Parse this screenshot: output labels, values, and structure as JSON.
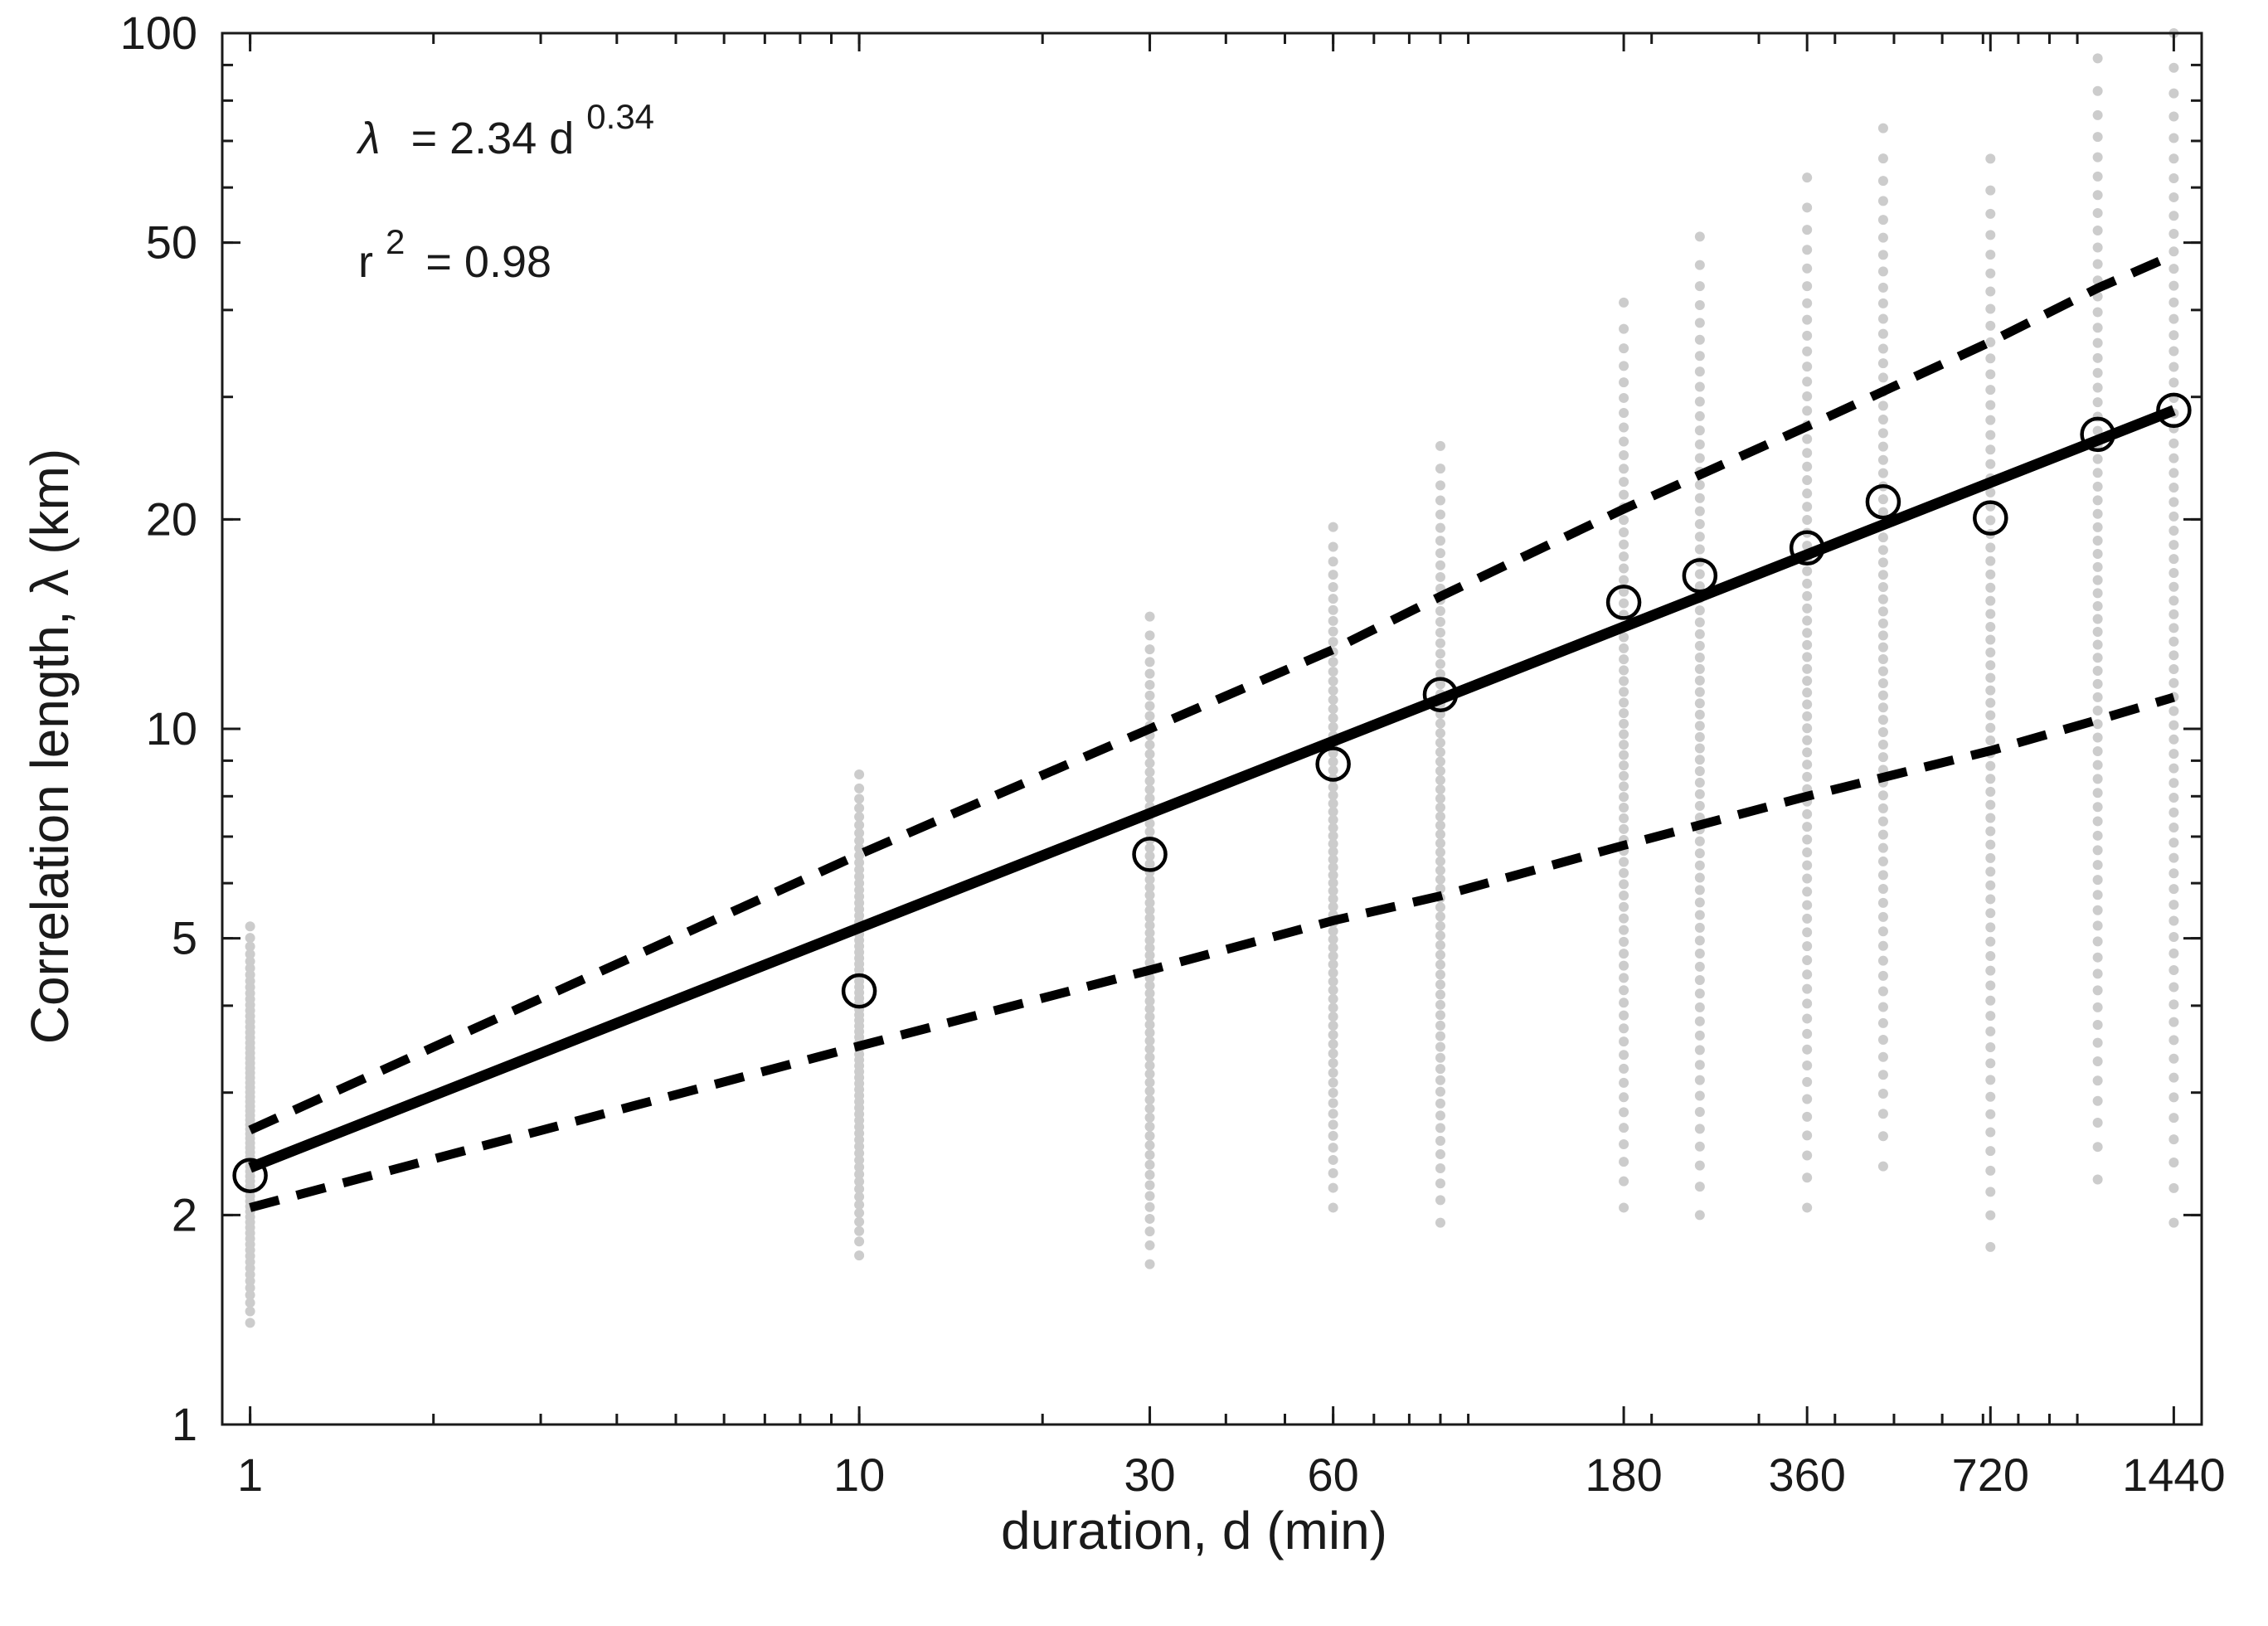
{
  "chart_data": {
    "type": "scatter",
    "xscale": "log",
    "yscale": "log",
    "xlim": [
      0.9,
      1600
    ],
    "ylim": [
      1,
      100
    ],
    "xlabel": "duration, d (min)",
    "ylabel": "Correlation length, λ (km)",
    "xticks": [
      1,
      10,
      30,
      60,
      180,
      360,
      720,
      1440
    ],
    "xtick_labels": [
      "1",
      "10",
      "30",
      "60",
      "180",
      "360",
      "720",
      "1440"
    ],
    "yticks": [
      1,
      2,
      5,
      10,
      20,
      50,
      100
    ],
    "ytick_labels": [
      "1",
      "2",
      "5",
      "10",
      "20",
      "50",
      "100"
    ],
    "grid": false,
    "annotations": {
      "equation_lhs": "λ",
      "equation_rhs": "= 2.34 d",
      "equation_exp": "0.34",
      "r2_lhs": "r",
      "r2_sup": "2",
      "r2_rhs": "= 0.98"
    },
    "colors": {
      "scatter": "#cccccc",
      "fit": "#000000",
      "means": "#000000"
    },
    "scatter_ranges": [
      {
        "x": 1,
        "y_min": 1.4,
        "y_max": 5.2
      },
      {
        "x": 10,
        "y_min": 1.75,
        "y_max": 8.6
      },
      {
        "x": 30,
        "y_min": 1.7,
        "y_max": 14.5
      },
      {
        "x": 60,
        "y_min": 2.05,
        "y_max": 19.5
      },
      {
        "x": 90,
        "y_min": 1.95,
        "y_max": 25.5
      },
      {
        "x": 180,
        "y_min": 2.05,
        "y_max": 41
      },
      {
        "x": 240,
        "y_min": 2.0,
        "y_max": 51
      },
      {
        "x": 360,
        "y_min": 2.05,
        "y_max": 62
      },
      {
        "x": 480,
        "y_min": 2.35,
        "y_max": 73
      },
      {
        "x": 720,
        "y_min": 1.8,
        "y_max": 66
      },
      {
        "x": 1080,
        "y_min": 2.25,
        "y_max": 92
      },
      {
        "x": 1440,
        "y_min": 1.95,
        "y_max": 100
      }
    ],
    "means": {
      "x": [
        1,
        10,
        30,
        60,
        90,
        180,
        240,
        360,
        480,
        720,
        1080,
        1440
      ],
      "y": [
        2.28,
        4.2,
        6.6,
        8.9,
        11.2,
        15.2,
        16.6,
        18.2,
        21.2,
        20.1,
        26.5,
        28.7
      ]
    },
    "fit": {
      "x": [
        1,
        1440
      ],
      "y": [
        2.34,
        28.7
      ]
    },
    "upper_bound": {
      "x": [
        1,
        10,
        30,
        60,
        90,
        180,
        360,
        720,
        1080,
        1440
      ],
      "y": [
        2.65,
        6.6,
        10.0,
        13.0,
        15.5,
        20.7,
        27.2,
        36.0,
        43.0,
        48.0
      ]
    },
    "lower_bound": {
      "x": [
        1,
        10,
        30,
        60,
        90,
        180,
        360,
        720,
        1080,
        1440
      ],
      "y": [
        2.05,
        3.5,
        4.5,
        5.3,
        5.75,
        6.8,
        8.0,
        9.3,
        10.3,
        11.1
      ]
    }
  }
}
